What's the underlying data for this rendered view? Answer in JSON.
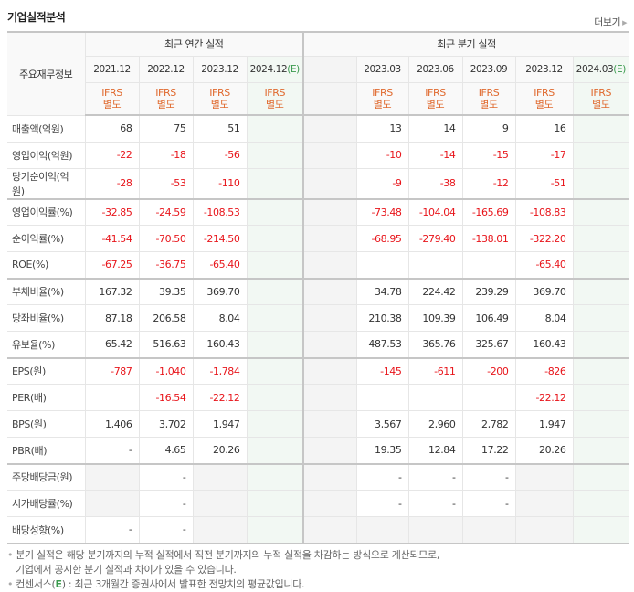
{
  "header": {
    "title": "기업실적분석",
    "more_label": "더보기"
  },
  "table": {
    "label_header": "주요재무정보",
    "annual_group": "최근 연간 실적",
    "quarter_group": "최근 분기 실적",
    "annual_dates": [
      "2021.12",
      "2022.12",
      "2023.12",
      "2024.12"
    ],
    "quarter_dates": [
      "2023.03",
      "2023.06",
      "2023.09",
      "2023.12",
      "2024.03"
    ],
    "estimate_marker": "(E)",
    "ifrs_line1": "IFRS",
    "ifrs_line2": "별도",
    "rows": [
      {
        "label": "매출액(억원)",
        "annual": [
          "68",
          "75",
          "51",
          ""
        ],
        "quarter": [
          "13",
          "14",
          "9",
          "16",
          ""
        ]
      },
      {
        "label": "영업이익(억원)",
        "annual": [
          "-22",
          "-18",
          "-56",
          ""
        ],
        "quarter": [
          "-10",
          "-14",
          "-15",
          "-17",
          ""
        ]
      },
      {
        "label": "당기순이익(억원)",
        "annual": [
          "-28",
          "-53",
          "-110",
          ""
        ],
        "quarter": [
          "-9",
          "-38",
          "-12",
          "-51",
          ""
        ]
      },
      {
        "label": "영업이익률(%)",
        "annual": [
          "-32.85",
          "-24.59",
          "-108.53",
          ""
        ],
        "quarter": [
          "-73.48",
          "-104.04",
          "-165.69",
          "-108.83",
          ""
        ]
      },
      {
        "label": "순이익률(%)",
        "annual": [
          "-41.54",
          "-70.50",
          "-214.50",
          ""
        ],
        "quarter": [
          "-68.95",
          "-279.40",
          "-138.01",
          "-322.20",
          ""
        ]
      },
      {
        "label": "ROE(%)",
        "annual": [
          "-67.25",
          "-36.75",
          "-65.40",
          ""
        ],
        "quarter": [
          "",
          "",
          "",
          "-65.40",
          ""
        ]
      },
      {
        "label": "부채비율(%)",
        "annual": [
          "167.32",
          "39.35",
          "369.70",
          ""
        ],
        "quarter": [
          "34.78",
          "224.42",
          "239.29",
          "369.70",
          ""
        ]
      },
      {
        "label": "당좌비율(%)",
        "annual": [
          "87.18",
          "206.58",
          "8.04",
          ""
        ],
        "quarter": [
          "210.38",
          "109.39",
          "106.49",
          "8.04",
          ""
        ]
      },
      {
        "label": "유보율(%)",
        "annual": [
          "65.42",
          "516.63",
          "160.43",
          ""
        ],
        "quarter": [
          "487.53",
          "365.76",
          "325.67",
          "160.43",
          ""
        ]
      },
      {
        "label": "EPS(원)",
        "annual": [
          "-787",
          "-1,040",
          "-1,784",
          ""
        ],
        "quarter": [
          "-145",
          "-611",
          "-200",
          "-826",
          ""
        ]
      },
      {
        "label": "PER(배)",
        "annual": [
          "",
          "-16.54",
          "-22.12",
          ""
        ],
        "quarter": [
          "",
          "",
          "",
          "-22.12",
          ""
        ]
      },
      {
        "label": "BPS(원)",
        "annual": [
          "1,406",
          "3,702",
          "1,947",
          ""
        ],
        "quarter": [
          "3,567",
          "2,960",
          "2,782",
          "1,947",
          ""
        ]
      },
      {
        "label": "PBR(배)",
        "annual": [
          "-",
          "4.65",
          "20.26",
          ""
        ],
        "quarter": [
          "19.35",
          "12.84",
          "17.22",
          "20.26",
          ""
        ]
      },
      {
        "label": "주당배당금(원)",
        "annual": [
          "",
          "-",
          "",
          ""
        ],
        "quarter": [
          "-",
          "-",
          "-",
          "",
          ""
        ]
      },
      {
        "label": "시가배당률(%)",
        "annual": [
          "",
          "-",
          "",
          ""
        ],
        "quarter": [
          "-",
          "-",
          "-",
          "",
          ""
        ]
      },
      {
        "label": "배당성향(%)",
        "annual": [
          "-",
          "-",
          "",
          ""
        ],
        "quarter": [
          "",
          "",
          "",
          "",
          ""
        ]
      }
    ]
  },
  "notes": {
    "line1": "분기 실적은 해당 분기까지의 누적 실적에서 직전 분기까지의 누적 실적을 차감하는 방식으로 계산되므로,",
    "line1b": "기업에서 공시한 분기 실적과 차이가 있을 수 있습니다.",
    "line2_pre": "컨센서스(",
    "line2_e": "E",
    "line2_post": ") : 최근 3개월간 증권사에서 발표한 전망치의 평균값입니다."
  },
  "colors": {
    "negative": "#e8151b",
    "ifrs": "#e06a2f",
    "estimate": "#3a9a4d",
    "estimate_bg": "#f2f8f3",
    "gray_bg": "#f4f4f4"
  }
}
